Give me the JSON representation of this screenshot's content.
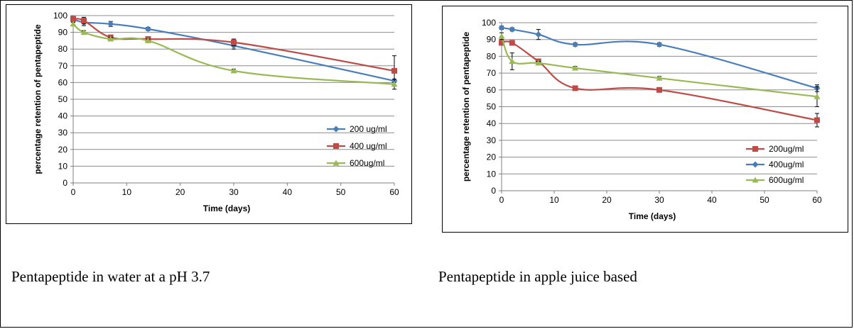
{
  "captions": {
    "left": "Pentapeptide in water at a pH 3.7",
    "right": "Pentapeptide in apple juice based"
  },
  "chart_data": [
    {
      "type": "line",
      "xlabel": "Time (days)",
      "ylabel": "percentage retention of pentapeptide",
      "xlim": [
        0,
        60
      ],
      "ylim": [
        0,
        100
      ],
      "xticks": [
        0,
        10,
        20,
        30,
        40,
        50,
        60
      ],
      "yticks": [
        0,
        10,
        20,
        30,
        40,
        50,
        60,
        70,
        80,
        90,
        100
      ],
      "grid": "horizontal",
      "legend_position": "right",
      "x": [
        0,
        2,
        7,
        14,
        30,
        60
      ],
      "series": [
        {
          "name": "200 ug/ml",
          "color": "#4a7ebb",
          "marker": "diamond",
          "values": [
            98,
            96,
            95,
            92,
            82,
            61
          ],
          "errors": [
            1,
            2,
            1.5,
            1,
            2,
            1
          ]
        },
        {
          "name": "400 ug/ml",
          "color": "#be4b48",
          "marker": "square",
          "values": [
            98,
            97,
            87,
            86,
            84,
            67
          ],
          "errors": [
            1.5,
            2,
            1,
            1,
            2,
            9
          ]
        },
        {
          "name": "600ug/ml",
          "color": "#98b954",
          "marker": "triangle",
          "values": [
            95,
            90,
            86,
            85,
            67,
            59
          ],
          "errors": [
            1,
            1,
            1,
            1,
            1,
            3
          ]
        }
      ]
    },
    {
      "type": "line",
      "xlabel": "Time (days)",
      "ylabel": "percentage retention of pentapeptide",
      "xlim": [
        0,
        60
      ],
      "ylim": [
        0,
        100
      ],
      "xticks": [
        0,
        10,
        20,
        30,
        40,
        50,
        60
      ],
      "yticks": [
        0,
        10,
        20,
        30,
        40,
        50,
        60,
        70,
        80,
        90,
        100
      ],
      "grid": "horizontal",
      "legend_position": "right",
      "x": [
        0,
        2,
        7,
        14,
        30,
        60
      ],
      "series": [
        {
          "name": "200ug/ml",
          "color": "#be4b48",
          "marker": "square",
          "values": [
            88,
            88,
            77,
            61,
            60,
            42
          ],
          "errors": [
            1,
            1,
            1,
            1,
            1,
            4
          ]
        },
        {
          "name": "400ug/ml",
          "color": "#4a7ebb",
          "marker": "diamond",
          "values": [
            97,
            96,
            93,
            87,
            87,
            61
          ],
          "errors": [
            1,
            1,
            3,
            1,
            1,
            2
          ]
        },
        {
          "name": "600ug/ml",
          "color": "#98b954",
          "marker": "triangle",
          "values": [
            92,
            77,
            76,
            73,
            67,
            56
          ],
          "errors": [
            2,
            5,
            1,
            1,
            1,
            6
          ]
        }
      ]
    }
  ]
}
